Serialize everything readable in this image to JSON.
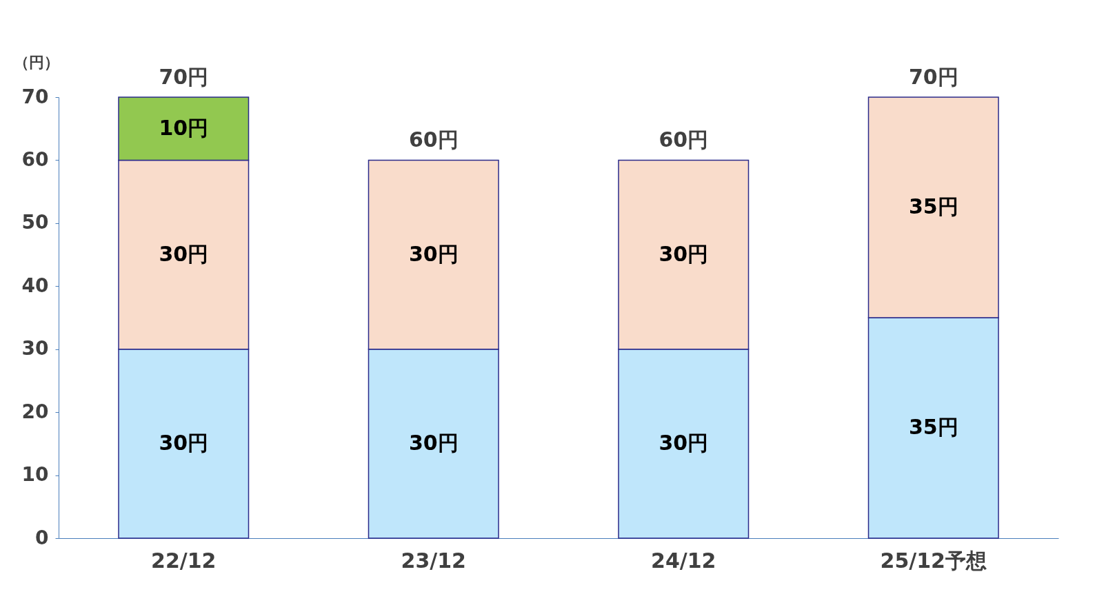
{
  "chart_data": {
    "type": "bar",
    "stacked": true,
    "ylabel": "（円）",
    "categories": [
      "22/12",
      "23/12",
      "24/12",
      "25/12予想"
    ],
    "series": [
      {
        "color": "#bfe6fb",
        "values": [
          30,
          30,
          30,
          35
        ],
        "value_labels": [
          "30円",
          "30円",
          "30円",
          "35円"
        ]
      },
      {
        "color": "#f9dccb",
        "values": [
          30,
          30,
          30,
          35
        ],
        "value_labels": [
          "30円",
          "30円",
          "30円",
          "35円"
        ]
      },
      {
        "color": "#92c850",
        "values": [
          10,
          null,
          null,
          null
        ],
        "value_labels": [
          "10円",
          null,
          null,
          null
        ]
      }
    ],
    "totals": [
      "70円",
      "60円",
      "60円",
      "70円"
    ],
    "ylim": [
      0,
      70
    ],
    "yticks": [
      0,
      10,
      20,
      30,
      40,
      50,
      60,
      70
    ],
    "grid": false
  }
}
